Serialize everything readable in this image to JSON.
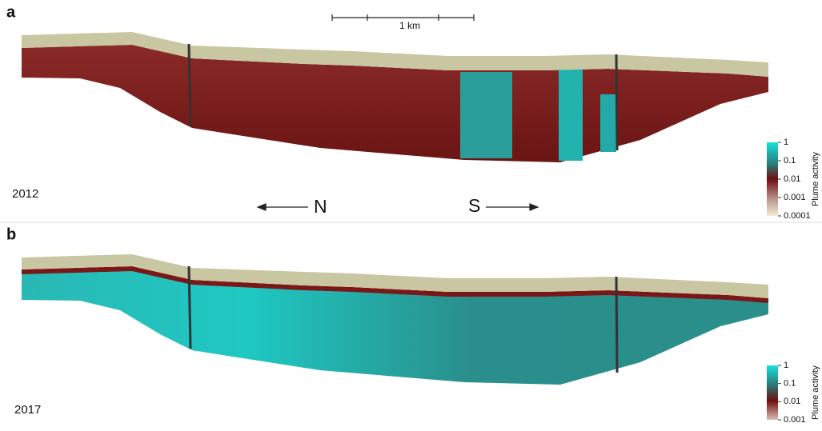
{
  "panels": [
    {
      "label": "a",
      "year": "2012",
      "colorbar": {
        "label": "Plume activity",
        "ticks": [
          "1",
          "0.1",
          "0.01",
          "0.001",
          "0.0001"
        ]
      }
    },
    {
      "label": "b",
      "year": "2017",
      "colorbar": {
        "label": "Plume activity",
        "ticks": [
          "1",
          "0.1",
          "0.01",
          "0.001"
        ]
      }
    }
  ],
  "scale_bar": "1 km",
  "directions": [
    "N",
    "S"
  ]
}
